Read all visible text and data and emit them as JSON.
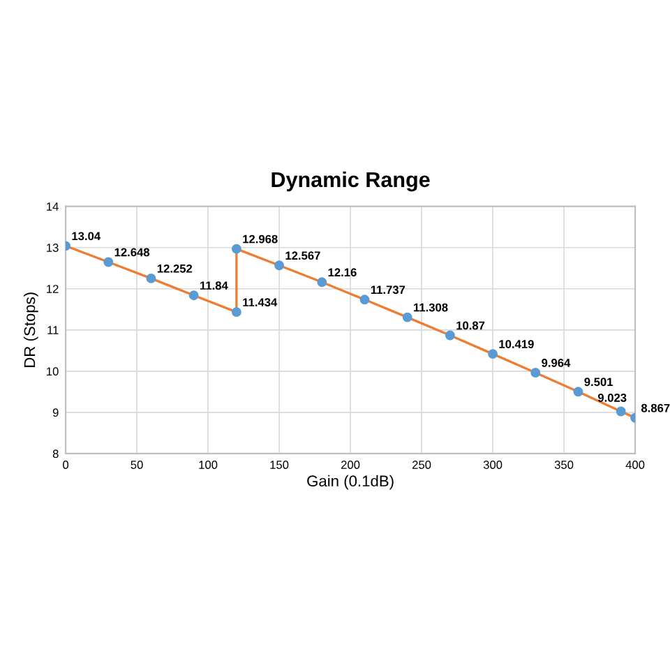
{
  "chart_data": {
    "type": "line",
    "title": "Dynamic Range",
    "xlabel": "Gain (0.1dB)",
    "ylabel": "DR (Stops)",
    "x": [
      0,
      30,
      60,
      90,
      120,
      120,
      150,
      180,
      210,
      240,
      270,
      300,
      330,
      360,
      390,
      400
    ],
    "series": [
      {
        "color": "#ed7d31",
        "values": [
          13.04,
          12.648,
          12.252,
          11.84,
          11.434,
          12.968,
          12.567,
          12.16,
          11.737,
          11.308,
          10.87,
          10.419,
          9.964,
          9.501,
          9.023,
          8.867
        ]
      }
    ],
    "marker": "circle",
    "data_labels": true,
    "grid": true,
    "xlim": [
      0,
      400
    ],
    "xticks": [
      0,
      50,
      100,
      150,
      200,
      250,
      300,
      350,
      400
    ],
    "ylim": [
      8,
      14
    ],
    "yticks": [
      8,
      9,
      10,
      11,
      12,
      13,
      14
    ]
  }
}
